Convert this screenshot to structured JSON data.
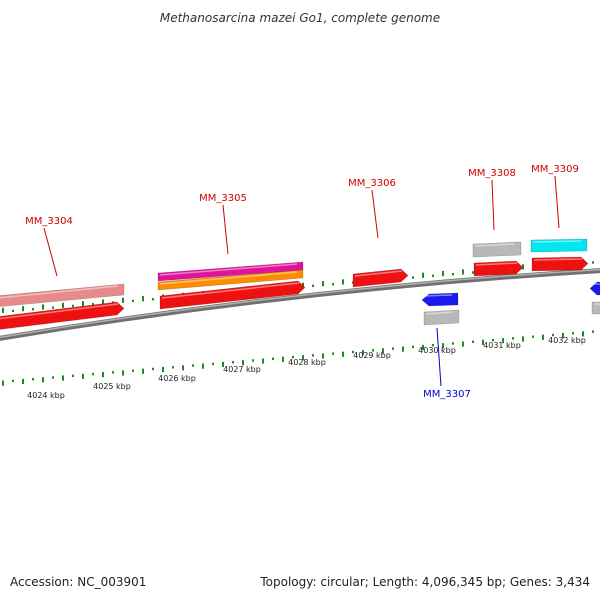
{
  "title": "Methanosarcina mazei Go1, complete genome",
  "footer": {
    "accession": "Accession: NC_003901",
    "summary": "Topology: circular; Length: 4,096,345 bp; Genes: 3,434"
  },
  "colors": {
    "backbone": "#8a8a8a",
    "tick": "#1f8a1f",
    "label_forward": "#cc0000",
    "label_reverse": "#0000cc",
    "cds": "#ee1111",
    "pink": "#e88a8a",
    "magenta": "#e0149a",
    "orange": "#ff8c00",
    "grey": "#b8b8b8",
    "cyan": "#00e5ee",
    "blue": "#1a1aee"
  },
  "kbp_labels": [
    "4024 kbp",
    "4025 kbp",
    "4026 kbp",
    "4027 kbp",
    "4028 kbp",
    "4029 kbp",
    "4030 kbp",
    "4031 kbp",
    "4032 kbp"
  ],
  "genes": [
    {
      "name": "MM_3304",
      "strand": "+"
    },
    {
      "name": "MM_3305",
      "strand": "+"
    },
    {
      "name": "MM_3306",
      "strand": "+"
    },
    {
      "name": "MM_3307",
      "strand": "-"
    },
    {
      "name": "MM_3308",
      "strand": "+"
    },
    {
      "name": "MM_3309",
      "strand": "+"
    }
  ]
}
